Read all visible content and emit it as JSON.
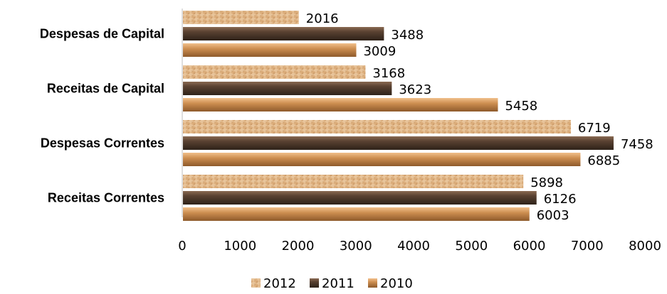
{
  "chart_data": {
    "type": "bar",
    "orientation": "horizontal",
    "categories": [
      "Receitas Correntes",
      "Despesas Correntes",
      "Receitas de Capital",
      "Despesas de Capital"
    ],
    "series": [
      {
        "name": "2012",
        "values": [
          5898,
          6719,
          3168,
          2016
        ],
        "color": "#d9a873"
      },
      {
        "name": "2011",
        "values": [
          6126,
          7458,
          3623,
          3488
        ],
        "color": "#5a4232"
      },
      {
        "name": "2010",
        "values": [
          6003,
          6885,
          5458,
          3009
        ],
        "color": "#c98a4b"
      }
    ],
    "xlim": [
      0,
      8000
    ],
    "xticks": [
      0,
      1000,
      2000,
      3000,
      4000,
      5000,
      6000,
      7000,
      8000
    ],
    "grid": false,
    "legend": "bottom",
    "data_labels": true
  }
}
